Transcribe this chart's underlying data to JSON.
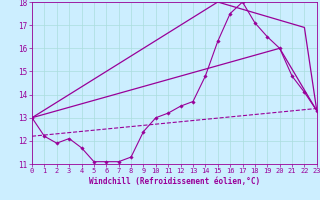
{
  "xlabel": "Windchill (Refroidissement éolien,°C)",
  "bg_color": "#cceeff",
  "line_color": "#990099",
  "grid_color": "#aadddd",
  "xlim": [
    0,
    23
  ],
  "ylim": [
    11,
    18
  ],
  "x_ticks": [
    0,
    1,
    2,
    3,
    4,
    5,
    6,
    7,
    8,
    9,
    10,
    11,
    12,
    13,
    14,
    15,
    16,
    17,
    18,
    19,
    20,
    21,
    22,
    23
  ],
  "y_ticks": [
    11,
    12,
    13,
    14,
    15,
    16,
    17,
    18
  ],
  "series1_x": [
    0,
    1,
    2,
    3,
    4,
    5,
    6,
    7,
    8,
    9,
    10,
    11,
    12,
    13,
    14,
    15,
    16,
    17,
    18,
    19,
    20,
    21,
    22,
    23
  ],
  "series1_y": [
    13.0,
    12.2,
    11.9,
    12.1,
    11.7,
    11.1,
    11.1,
    11.1,
    11.3,
    12.4,
    13.0,
    13.2,
    13.5,
    13.7,
    14.8,
    16.3,
    17.5,
    18.0,
    17.1,
    16.5,
    16.0,
    14.8,
    14.1,
    13.3
  ],
  "series2_x": [
    0,
    15,
    22,
    23
  ],
  "series2_y": [
    13.0,
    18.0,
    16.9,
    13.3
  ],
  "series3_x": [
    0,
    20,
    23
  ],
  "series3_y": [
    13.0,
    16.0,
    13.3
  ],
  "series4_x": [
    0,
    23
  ],
  "series4_y": [
    12.2,
    13.4
  ]
}
